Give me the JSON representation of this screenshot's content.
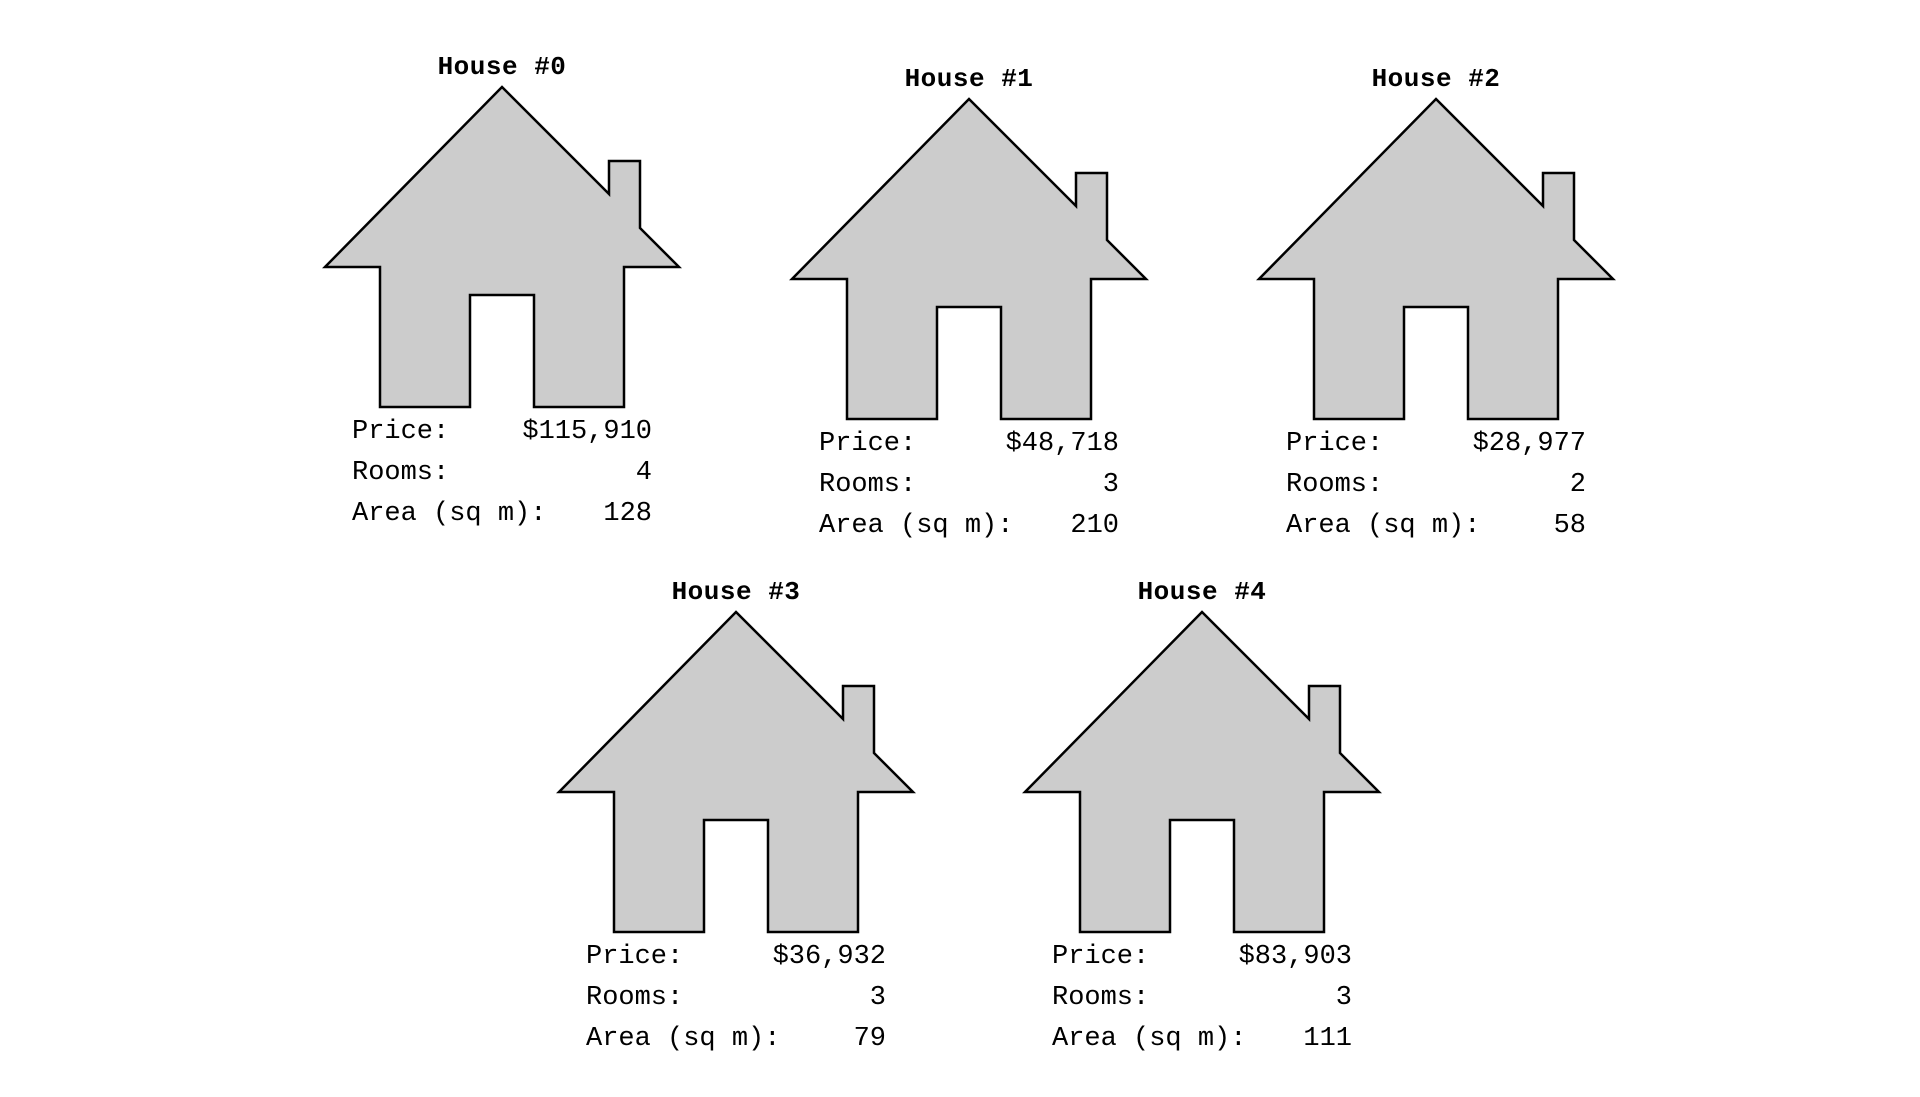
{
  "labels": {
    "price": "Price:",
    "rooms": "Rooms:",
    "area": "Area (sq m):"
  },
  "houses": [
    {
      "title": "House #0",
      "price": "$115,910",
      "rooms": "4",
      "area": "128"
    },
    {
      "title": "House #1",
      "price": "$48,718",
      "rooms": "3",
      "area": "210"
    },
    {
      "title": "House #2",
      "price": "$28,977",
      "rooms": "2",
      "area": "58"
    },
    {
      "title": "House #3",
      "price": "$36,932",
      "rooms": "3",
      "area": "79"
    },
    {
      "title": "House #4",
      "price": "$83,903",
      "rooms": "3",
      "area": "111"
    }
  ],
  "colors": {
    "house_fill": "#cccccc",
    "house_outline": "#000000",
    "background": "#ffffff"
  }
}
